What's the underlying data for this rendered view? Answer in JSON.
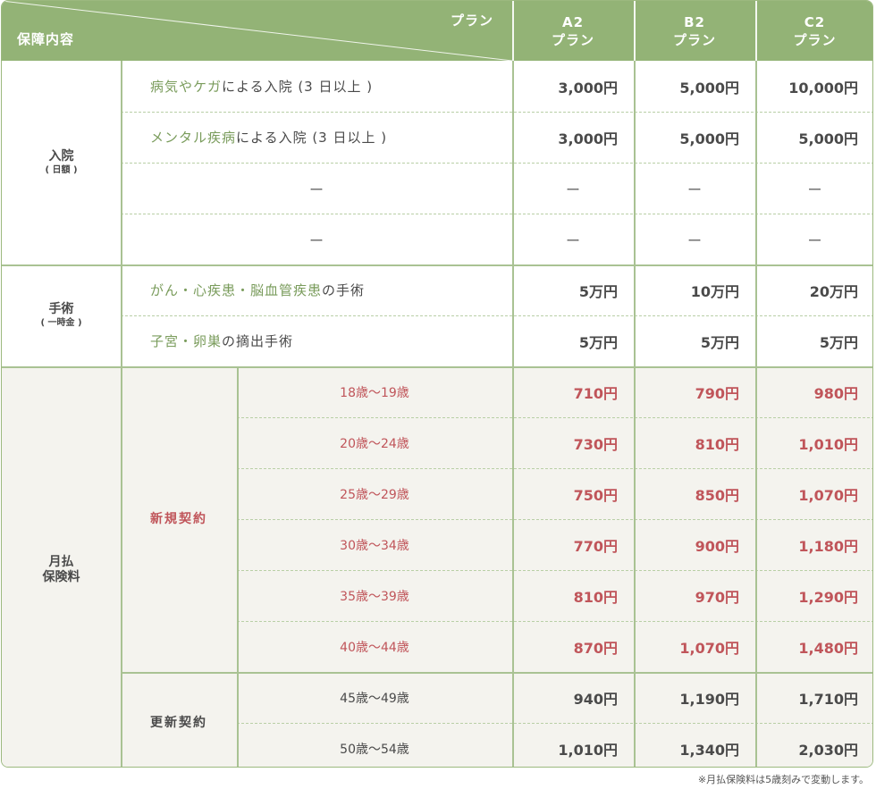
{
  "header": {
    "coverage_label": "保障内容",
    "plan_label": "プラン",
    "plans": [
      {
        "code": "A2",
        "suffix": "プラン"
      },
      {
        "code": "B2",
        "suffix": "プラン"
      },
      {
        "code": "C2",
        "suffix": "プラン"
      }
    ]
  },
  "hospital": {
    "title": "入院",
    "sub": "( 日額 )",
    "rows": [
      {
        "em": "病気やケガ",
        "rest": "による入院 (3 日以上 )",
        "prices": [
          "3,000円",
          "5,000円",
          "10,000円"
        ]
      },
      {
        "em": "メンタル疾病",
        "rest": "による入院 (3 日以上 )",
        "prices": [
          "3,000円",
          "5,000円",
          "5,000円"
        ]
      },
      {
        "em": "",
        "rest": "ー",
        "prices": [
          "ー",
          "ー",
          "ー"
        ]
      },
      {
        "em": "",
        "rest": "ー",
        "prices": [
          "ー",
          "ー",
          "ー"
        ]
      }
    ]
  },
  "surgery": {
    "title": "手術",
    "sub": "( 一時金 )",
    "rows": [
      {
        "em": "がん・心疾患・脳血管疾患",
        "rest": "の手術",
        "prices": [
          "5万円",
          "10万円",
          "20万円"
        ]
      },
      {
        "em": "子宮・卵巣",
        "rest": "の摘出手術",
        "prices": [
          "5万円",
          "5万円",
          "5万円"
        ]
      }
    ]
  },
  "premium": {
    "title": "月払\n保険料",
    "new": {
      "label": "新規契約",
      "rows": [
        {
          "age": "18歳〜19歳",
          "prices": [
            "710円",
            "790円",
            "980円"
          ]
        },
        {
          "age": "20歳〜24歳",
          "prices": [
            "730円",
            "810円",
            "1,010円"
          ]
        },
        {
          "age": "25歳〜29歳",
          "prices": [
            "750円",
            "850円",
            "1,070円"
          ]
        },
        {
          "age": "30歳〜34歳",
          "prices": [
            "770円",
            "900円",
            "1,180円"
          ]
        },
        {
          "age": "35歳〜39歳",
          "prices": [
            "810円",
            "970円",
            "1,290円"
          ]
        },
        {
          "age": "40歳〜44歳",
          "prices": [
            "870円",
            "1,070円",
            "1,480円"
          ]
        }
      ]
    },
    "renew": {
      "label": "更新契約",
      "rows": [
        {
          "age": "45歳〜49歳",
          "prices": [
            "940円",
            "1,190円",
            "1,710円"
          ]
        },
        {
          "age": "50歳〜54歳",
          "prices": [
            "1,010円",
            "1,340円",
            "2,030円"
          ]
        }
      ]
    }
  },
  "colors": {
    "header": "#93b376",
    "accent_green": "#7a9c5c",
    "accent_red": "#c0555a",
    "shade": "#f4f3ee",
    "line": "#a9c293"
  },
  "footnote": "※月払保険料は5歳刻みで変動します。"
}
